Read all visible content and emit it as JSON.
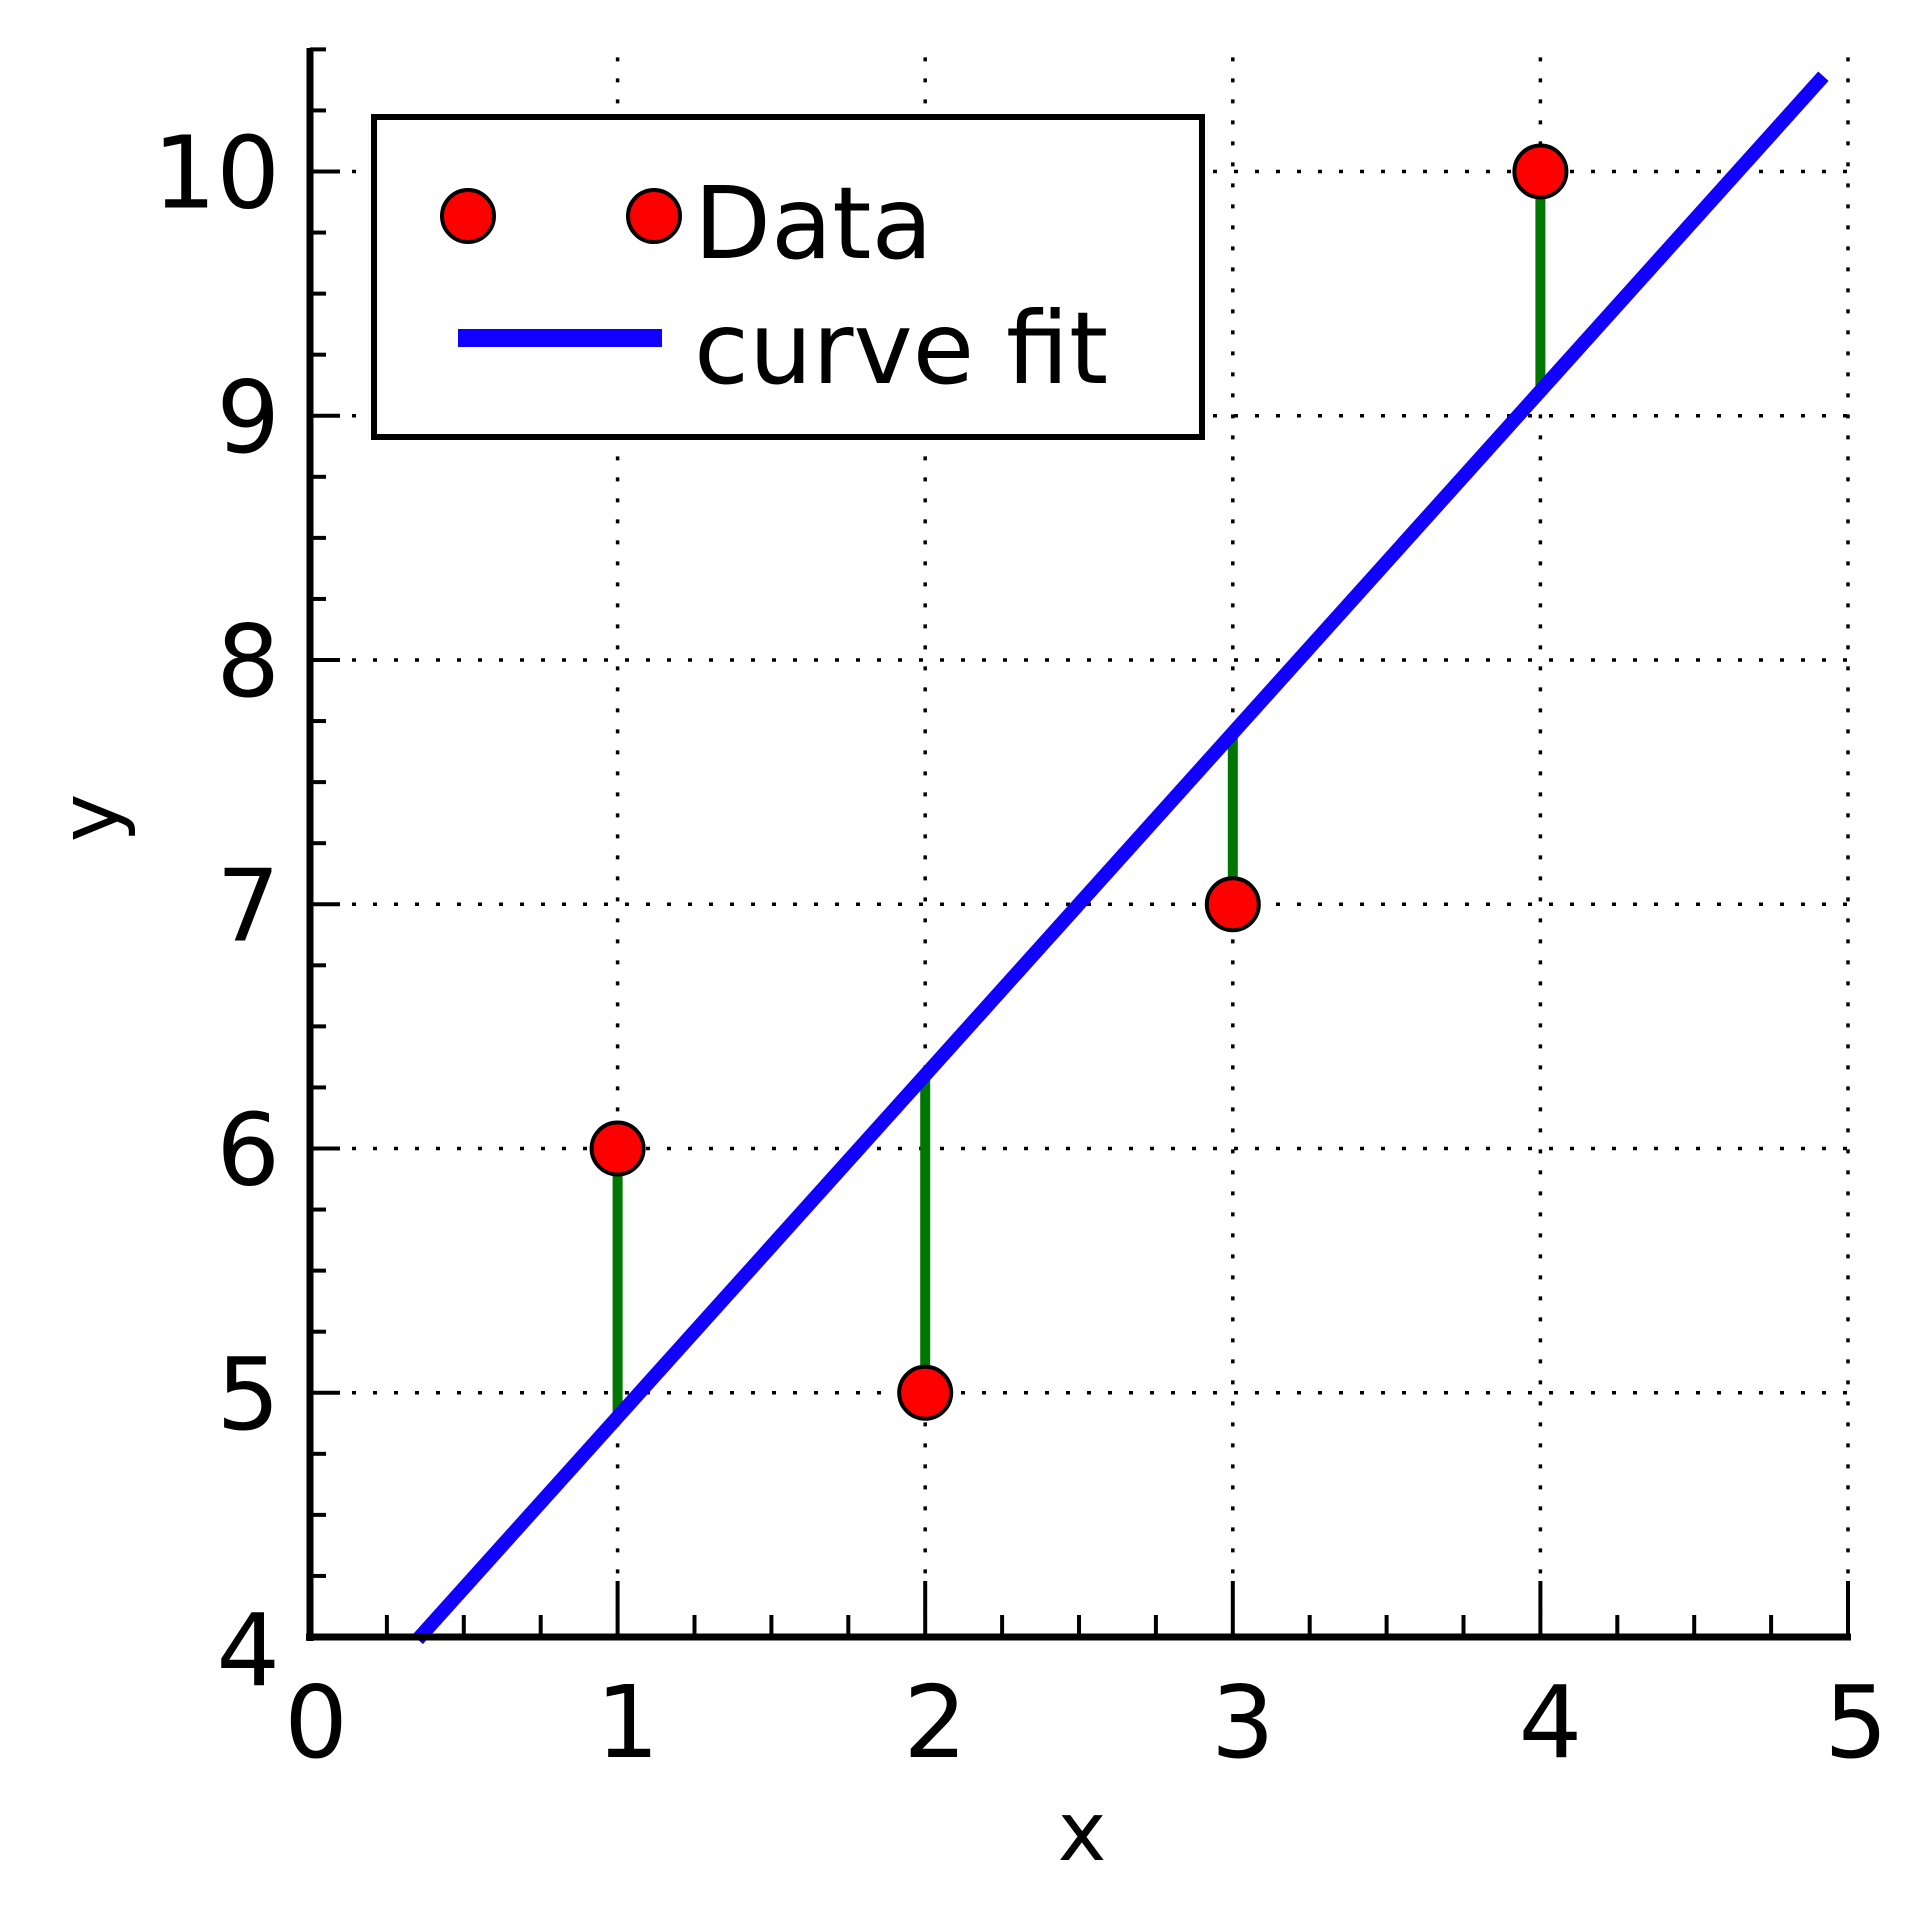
{
  "chart_data": {
    "type": "scatter",
    "title": "",
    "xlabel": "x",
    "ylabel": "y",
    "xlim": [
      0,
      5
    ],
    "ylim": [
      4,
      10.5
    ],
    "x_ticks": [
      "0",
      "1",
      "2",
      "3",
      "4",
      "5"
    ],
    "y_ticks": [
      "4",
      "5",
      "6",
      "7",
      "8",
      "9",
      "10"
    ],
    "grid": true,
    "legend_position": "upper left",
    "series": [
      {
        "name": "Data",
        "type": "scatter",
        "color": "#ff0000",
        "x": [
          1,
          2,
          3,
          4
        ],
        "y": [
          6,
          5,
          7,
          10
        ]
      },
      {
        "name": "curve fit",
        "type": "line",
        "color": "#0000ff",
        "x": [
          0.35,
          4.92
        ],
        "y": [
          3.99,
          10.39
        ],
        "slope": 1.4,
        "intercept": 3.5
      }
    ],
    "residuals": {
      "color": "#007700",
      "x": [
        1,
        2,
        3,
        4
      ],
      "from": [
        6,
        5,
        7,
        10
      ],
      "to": [
        4.9,
        6.3,
        7.7,
        9.1
      ]
    }
  },
  "legend": {
    "data_label": "Data",
    "fit_label": "curve fit"
  }
}
